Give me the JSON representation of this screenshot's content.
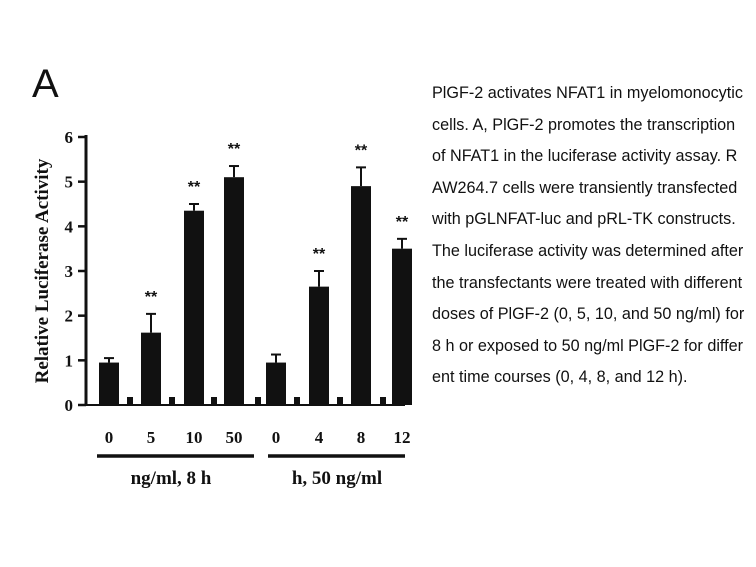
{
  "panel_label": "A",
  "caption": "PlGF-2 activates NFAT1 in myelomonocytic cells. A, PlGF-2 promotes the transcription of NFAT1 in the luciferase activity assay. RAW264.7 cells were transiently transfected with pGLNFAT-luc and pRL-TK constructs. The luciferase activity was determined after the transfectants were treated with different doses of PlGF-2 (0, 5, 10, and 50 ng/ml) for 8 h or exposed to 50 ng/ml PlGF-2 for different time courses (0, 4, 8, and 12 h).",
  "chart_data": {
    "type": "bar",
    "title": "",
    "ylabel": "Relative Luciferase Activity",
    "ylim": [
      0,
      6
    ],
    "yticks": [
      0,
      1,
      2,
      3,
      4,
      5,
      6
    ],
    "groups": [
      {
        "label": "ng/ml, 8 h",
        "categories": [
          "0",
          "5",
          "10",
          "50"
        ],
        "values": [
          0.95,
          1.62,
          4.35,
          5.1
        ],
        "errors": [
          0.1,
          0.42,
          0.15,
          0.25
        ],
        "significance": [
          "",
          "**",
          "**",
          "**"
        ]
      },
      {
        "label": "h, 50 ng/ml",
        "categories": [
          "0",
          "4",
          "8",
          "12"
        ],
        "values": [
          0.95,
          2.65,
          4.9,
          3.5
        ],
        "errors": [
          0.18,
          0.35,
          0.42,
          0.22
        ],
        "significance": [
          "",
          "**",
          "**",
          "**"
        ]
      }
    ]
  }
}
